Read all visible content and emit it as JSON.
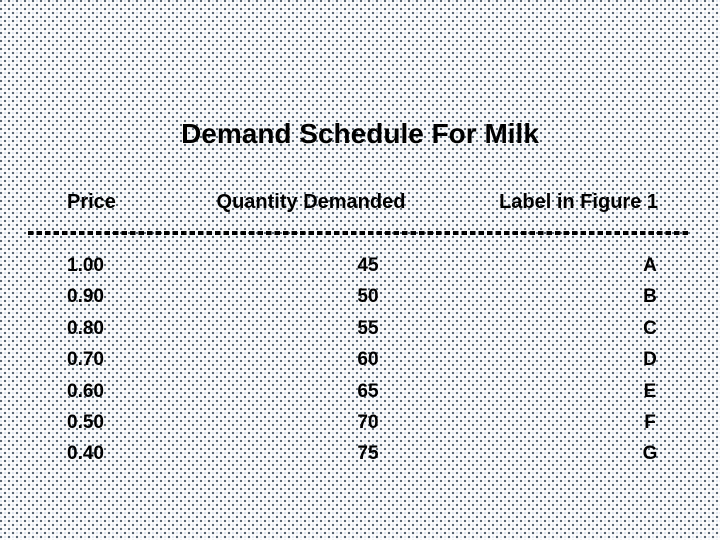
{
  "slide": {
    "title": "Demand Schedule For Milk",
    "table": {
      "headers": {
        "price": "Price",
        "quantity": "Quantity Demanded",
        "label": "Label in Figure 1"
      },
      "rows": [
        {
          "price": "1.00",
          "quantity": "45",
          "label": "A"
        },
        {
          "price": "0.90",
          "quantity": "50",
          "label": "B"
        },
        {
          "price": "0.80",
          "quantity": "55",
          "label": "C"
        },
        {
          "price": "0.70",
          "quantity": "60",
          "label": "D"
        },
        {
          "price": "0.60",
          "quantity": "65",
          "label": "E"
        },
        {
          "price": "0.50",
          "quantity": "70",
          "label": "F"
        },
        {
          "price": "0.40",
          "quantity": "75",
          "label": "G"
        }
      ]
    }
  },
  "chart_data": {
    "type": "table",
    "title": "Demand Schedule For Milk",
    "columns": [
      "Price",
      "Quantity Demanded",
      "Label in Figure 1"
    ],
    "rows": [
      [
        "1.00",
        45,
        "A"
      ],
      [
        "0.90",
        50,
        "B"
      ],
      [
        "0.80",
        55,
        "C"
      ],
      [
        "0.70",
        60,
        "D"
      ],
      [
        "0.60",
        65,
        "E"
      ],
      [
        "0.50",
        70,
        "F"
      ],
      [
        "0.40",
        75,
        "G"
      ]
    ]
  },
  "colors": {
    "text": "#000000",
    "background": "#fdfdfe",
    "dot_dark": "#4d5b69",
    "dot_light": "#dde4ee"
  }
}
